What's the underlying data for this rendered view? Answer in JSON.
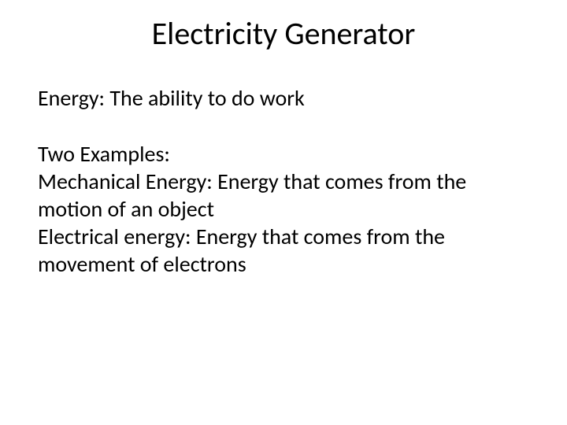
{
  "background_color": "#ffffff",
  "text_color": "#000000",
  "font_family": "Calibri, 'Segoe UI', Arial, sans-serif",
  "title": {
    "text": "Electricity Generator",
    "fontsize": 40,
    "align": "center",
    "weight": "normal"
  },
  "body": {
    "fontsize": 28,
    "line_height": 1.25,
    "paragraphs": [
      "Energy: The ability to do work",
      "Two Examples:",
      "Mechanical Energy: Energy that comes from the motion of an object",
      "Electrical energy: Energy that comes from the movement of electrons"
    ]
  }
}
